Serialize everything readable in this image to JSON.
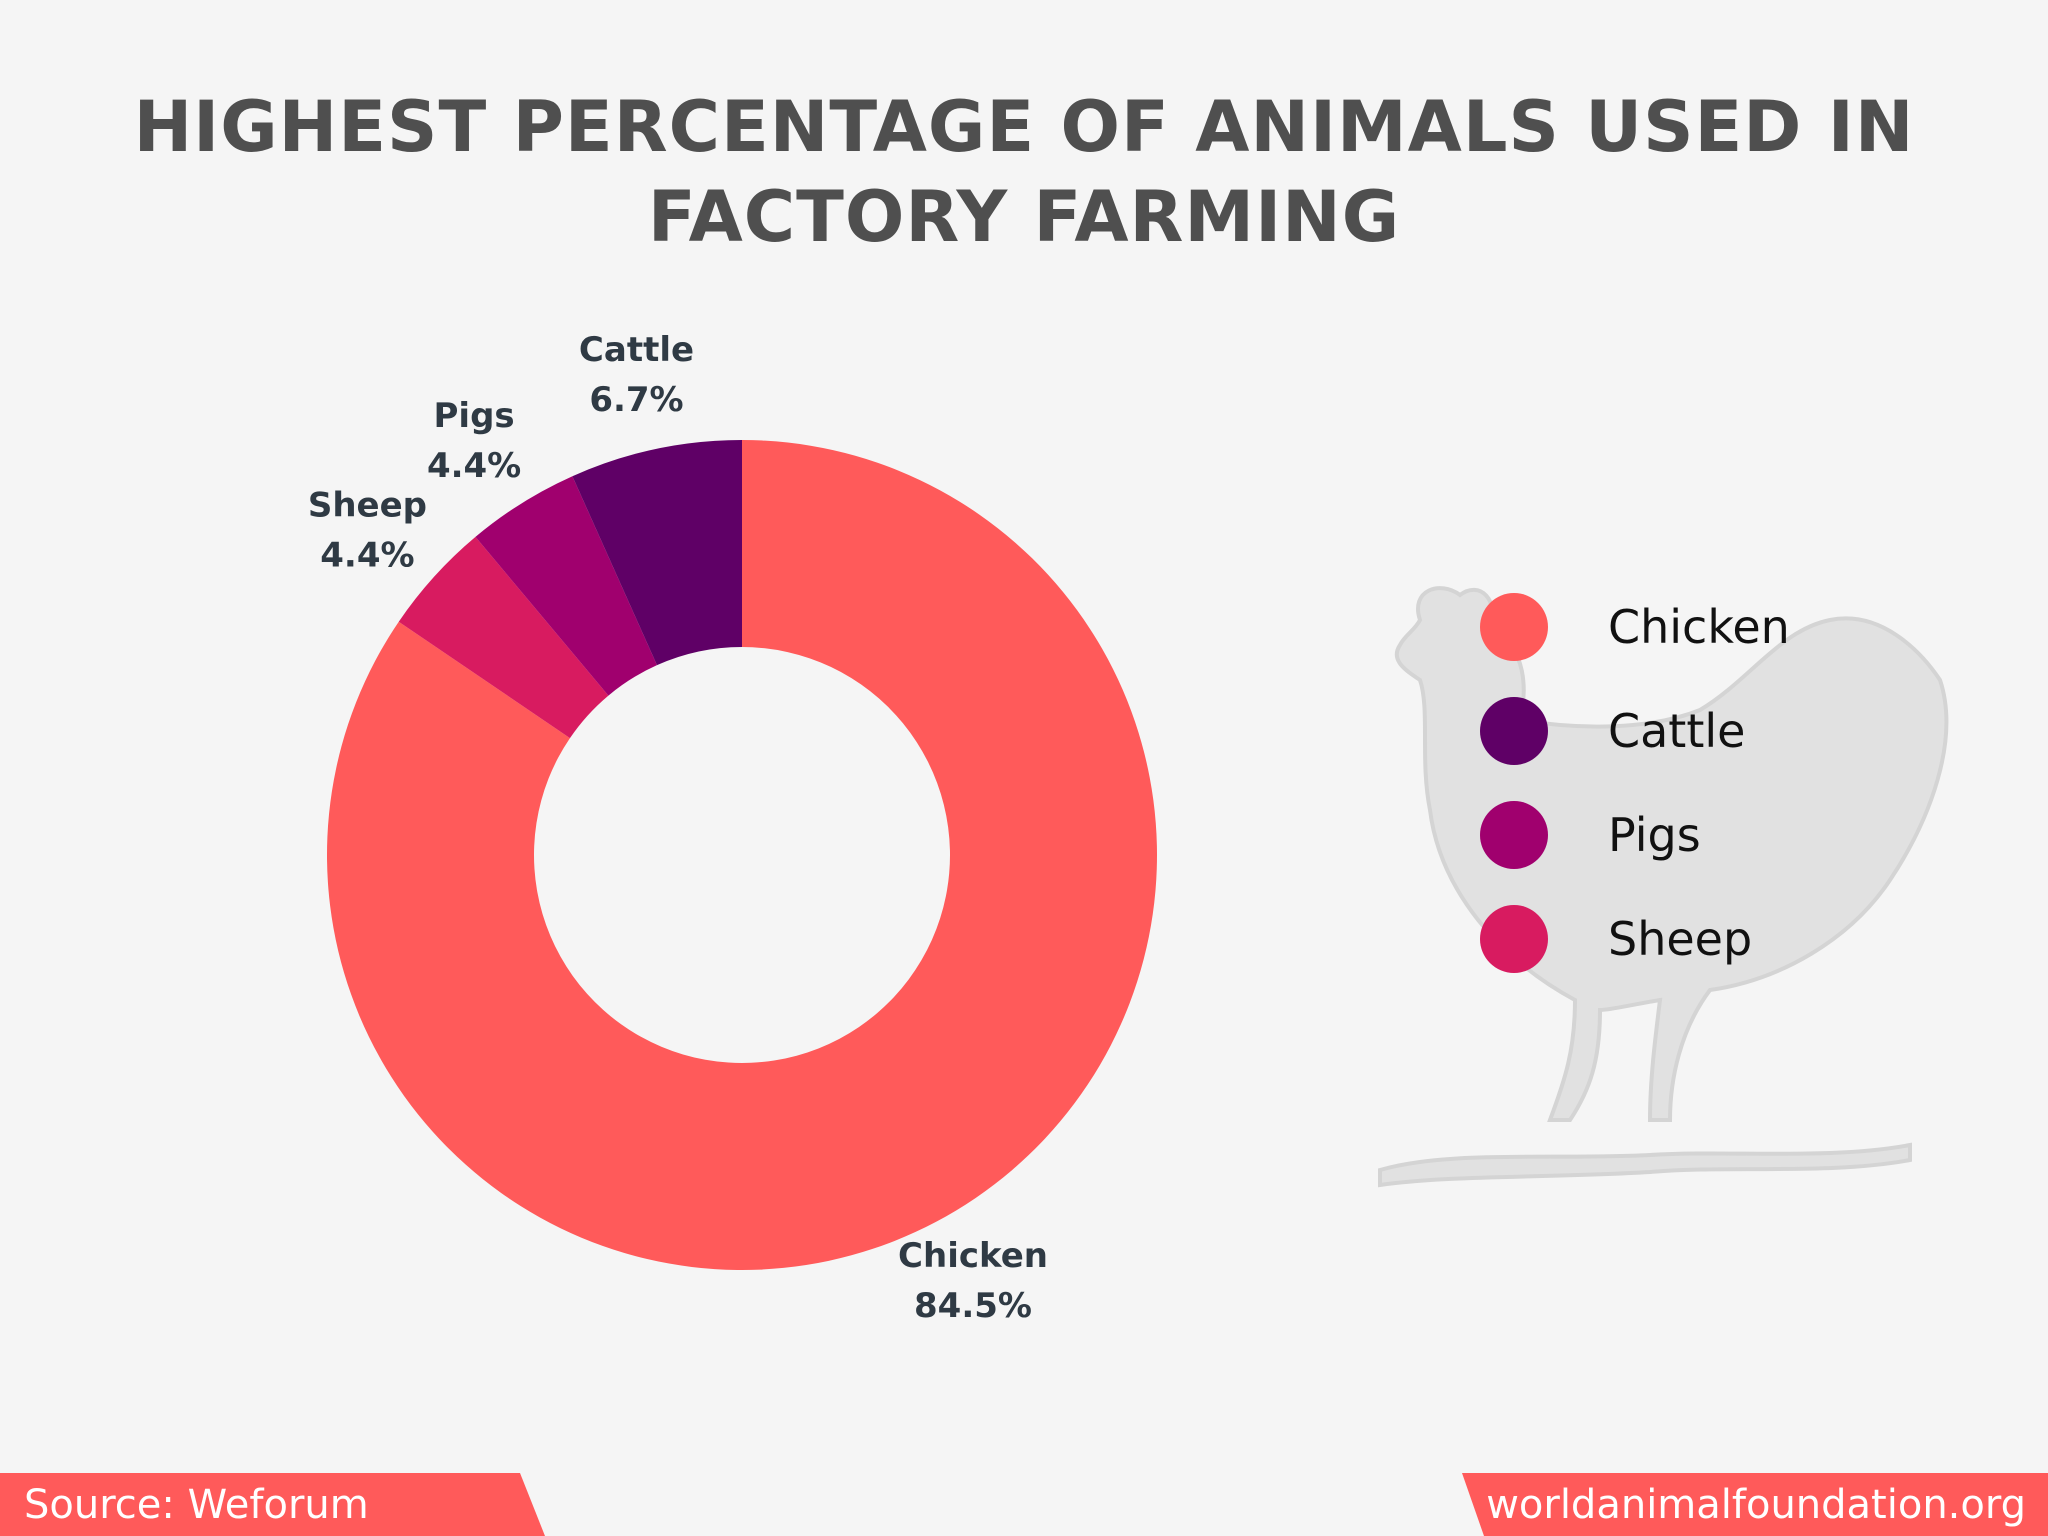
{
  "chart_data": {
    "type": "pie",
    "title": [
      "HIGHEST PERCENTAGE OF ANIMALS USED IN",
      "FACTORY FARMING"
    ],
    "slices": [
      {
        "label": "Chicken",
        "value": 84.5,
        "display": "84.5%",
        "color": "#ff5a5a"
      },
      {
        "label": "Sheep",
        "value": 4.4,
        "display": "4.4%",
        "color": "#d81b60"
      },
      {
        "label": "Pigs",
        "value": 4.4,
        "display": "4.4%",
        "color": "#a0006e"
      },
      {
        "label": "Cattle",
        "value": 6.7,
        "display": "6.7%",
        "color": "#5f0066"
      }
    ],
    "donut": true,
    "legend_position": "right",
    "legend": [
      {
        "label": "Chicken",
        "color": "#ff5a5a"
      },
      {
        "label": "Cattle",
        "color": "#5f0066"
      },
      {
        "label": "Pigs",
        "color": "#a0006e"
      },
      {
        "label": "Sheep",
        "color": "#d81b60"
      }
    ]
  },
  "footer": {
    "source": "Source: Weforum",
    "site": "worldanimalfoundation.org"
  },
  "colors": {
    "accent": "#ff5a5a",
    "background": "#f5f5f5",
    "title": "#4f4f4f"
  }
}
